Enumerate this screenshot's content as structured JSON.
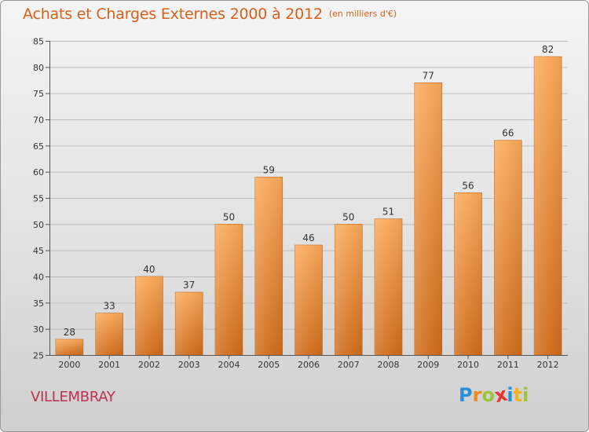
{
  "header": {
    "title": "Achats et Charges Externes 2000 à 2012",
    "unit": "(en milliers d'€)"
  },
  "commune": "VILLEMBRAY",
  "logo": {
    "text": "Proxiti",
    "letters": [
      {
        "ch": "P",
        "color": "#2a8fd6"
      },
      {
        "ch": "r",
        "color": "#f08a1c"
      },
      {
        "ch": "o",
        "color": "#9bc43a"
      },
      {
        "ch": "x",
        "color": "#e8342a"
      },
      {
        "ch": "i",
        "color": "#2a8fd6"
      },
      {
        "ch": "t",
        "color": "#f0b41c"
      },
      {
        "ch": "i",
        "color": "#9bc43a"
      }
    ]
  },
  "colors": {
    "title": "#d8601a",
    "commune": "#c0304f",
    "bar_top": "#f9a95a",
    "bar_bottom": "#cf6c1c",
    "grid": "#bdbdbd"
  },
  "chart_data": {
    "type": "bar",
    "title": "Achats et Charges Externes 2000 à 2012",
    "subtitle": "(en milliers d'€)",
    "xlabel": "",
    "ylabel": "",
    "categories": [
      "2000",
      "2001",
      "2002",
      "2003",
      "2004",
      "2005",
      "2006",
      "2007",
      "2008",
      "2009",
      "2010",
      "2011",
      "2012"
    ],
    "values": [
      28,
      33,
      40,
      37,
      50,
      59,
      46,
      50,
      51,
      77,
      56,
      66,
      82
    ],
    "ylim": [
      25,
      85
    ],
    "yticks": [
      25,
      30,
      35,
      40,
      45,
      50,
      55,
      60,
      65,
      70,
      75,
      80,
      85
    ],
    "grid": true,
    "data_labels": true
  }
}
